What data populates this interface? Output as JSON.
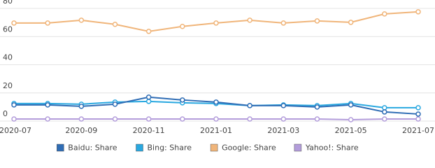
{
  "chart_data": {
    "type": "line",
    "x": [
      "2020-07",
      null,
      "2020-09",
      null,
      "2020-11",
      null,
      "2021-01",
      null,
      "2021-03",
      null,
      "2021-05",
      null,
      "2021-07"
    ],
    "series": [
      {
        "name": "Baidu: Share",
        "color": "#2f6db5",
        "values": [
          11.5,
          11.5,
          10.5,
          12,
          17,
          15,
          13.5,
          11,
          11,
          10,
          11.5,
          6.5,
          5
        ]
      },
      {
        "name": "Bing: Share",
        "color": "#29a8e0",
        "values": [
          12.5,
          12.5,
          12,
          13.5,
          14,
          13,
          12.5,
          11,
          11.5,
          11,
          12.5,
          9.5,
          9.5
        ]
      },
      {
        "name": "Google: Share",
        "color": "#f0b57a",
        "values": [
          69.6,
          69.6,
          71.6,
          68.7,
          63.7,
          67.2,
          69.6,
          71.6,
          69.6,
          71.1,
          70.1,
          76.1,
          77.6
        ]
      },
      {
        "name": "Yahoo!: Share",
        "color": "#b39ddb",
        "values": [
          1.5,
          1.5,
          1.5,
          1.5,
          1.5,
          1.5,
          1.5,
          1.5,
          1.5,
          1.5,
          1,
          1.5,
          1.5
        ]
      }
    ],
    "ylim": [
      0,
      80
    ],
    "yticks": [
      0,
      20,
      40,
      60,
      80
    ],
    "grid": true,
    "legend": "bottom"
  }
}
